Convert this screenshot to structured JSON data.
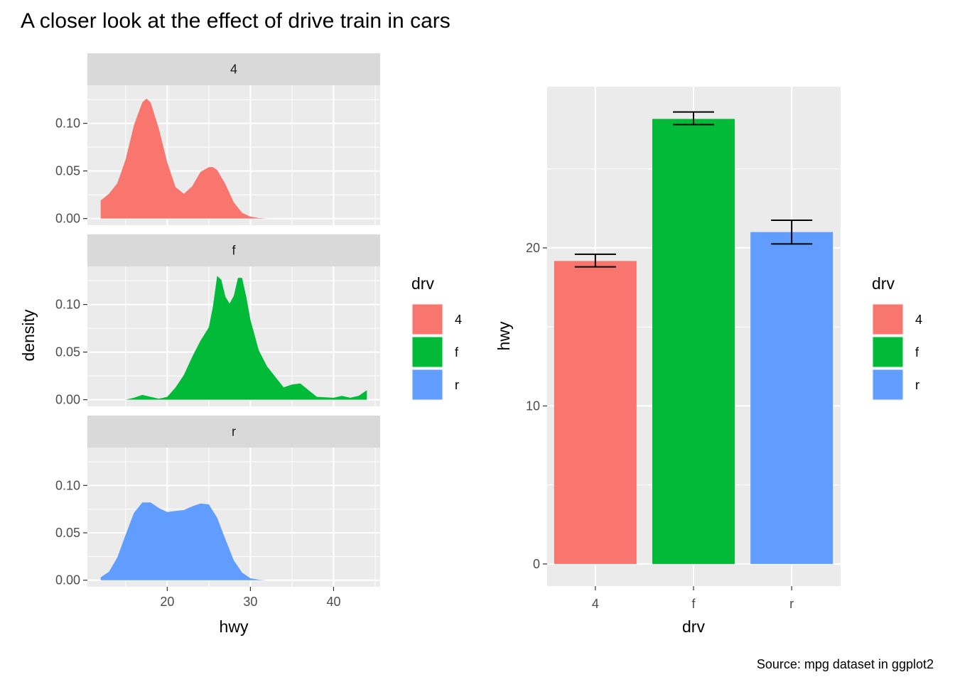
{
  "title": "A closer look at the effect of drive train in cars",
  "caption": "Source: mpg dataset in ggplot2",
  "colors": {
    "4": "#F8766D",
    "f": "#00BA38",
    "r": "#619CFF",
    "panel_bg": "#EBEBEB",
    "strip_bg": "#D9D9D9",
    "grid": "#FFFFFF"
  },
  "chart_data": [
    {
      "type": "area",
      "facet_by": "drv",
      "xlabel": "hwy",
      "ylabel": "density",
      "xlim": [
        10.4,
        45.6
      ],
      "ylim": [
        -0.007,
        0.14
      ],
      "x_ticks": [
        20,
        30,
        40
      ],
      "y_ticks": [
        0.0,
        0.05,
        0.1
      ],
      "y_tick_labels": [
        "0.00",
        "0.05",
        "0.10"
      ],
      "legend": {
        "title": "drv",
        "position": "right",
        "entries": [
          "4",
          "f",
          "r"
        ]
      },
      "series": [
        {
          "name": "4",
          "strip_label": "4",
          "x": [
            12,
            13,
            14,
            15,
            16,
            17,
            17.5,
            18,
            19,
            20,
            21,
            22,
            23,
            24,
            25,
            25.5,
            26,
            27,
            28,
            29,
            30,
            31,
            32
          ],
          "y": [
            0.019,
            0.026,
            0.037,
            0.062,
            0.098,
            0.122,
            0.126,
            0.122,
            0.094,
            0.059,
            0.033,
            0.026,
            0.034,
            0.049,
            0.054,
            0.054,
            0.051,
            0.036,
            0.017,
            0.006,
            0.002,
            0.0005,
            0.0
          ]
        },
        {
          "name": "f",
          "strip_label": "f",
          "x": [
            15,
            16,
            17,
            18,
            19,
            20,
            21,
            22,
            23,
            24,
            25,
            25.5,
            26,
            26.5,
            27,
            27.5,
            28,
            28.5,
            29,
            29.5,
            30,
            31,
            32,
            33,
            34,
            35,
            36,
            37,
            38,
            40,
            41,
            42,
            43,
            44
          ],
          "y": [
            0.0,
            0.002,
            0.005,
            0.003,
            0.001,
            0.003,
            0.013,
            0.026,
            0.045,
            0.062,
            0.076,
            0.098,
            0.13,
            0.126,
            0.108,
            0.101,
            0.109,
            0.128,
            0.128,
            0.108,
            0.084,
            0.052,
            0.035,
            0.024,
            0.013,
            0.016,
            0.017,
            0.01,
            0.003,
            0.002,
            0.004,
            0.002,
            0.004,
            0.01
          ]
        },
        {
          "name": "r",
          "strip_label": "r",
          "x": [
            12,
            13,
            14,
            15,
            16,
            17,
            18,
            19,
            20,
            21,
            22,
            23,
            24,
            25,
            26,
            27,
            28,
            29,
            30,
            31,
            32
          ],
          "y": [
            0.003,
            0.009,
            0.024,
            0.048,
            0.071,
            0.082,
            0.082,
            0.076,
            0.072,
            0.073,
            0.074,
            0.078,
            0.081,
            0.08,
            0.066,
            0.043,
            0.021,
            0.008,
            0.002,
            0.0005,
            0.0
          ]
        }
      ]
    },
    {
      "type": "bar",
      "xlabel": "drv",
      "ylabel": "hwy",
      "categories": [
        "4",
        "f",
        "r"
      ],
      "values": [
        19.17,
        28.16,
        21.0
      ],
      "error_bars": [
        [
          18.8,
          19.6
        ],
        [
          27.8,
          28.6
        ],
        [
          20.25,
          21.75
        ]
      ],
      "ylim": [
        -1.4,
        30.2
      ],
      "y_ticks": [
        0,
        10,
        20
      ],
      "legend": {
        "title": "drv",
        "position": "right",
        "entries": [
          "4",
          "f",
          "r"
        ]
      }
    }
  ]
}
